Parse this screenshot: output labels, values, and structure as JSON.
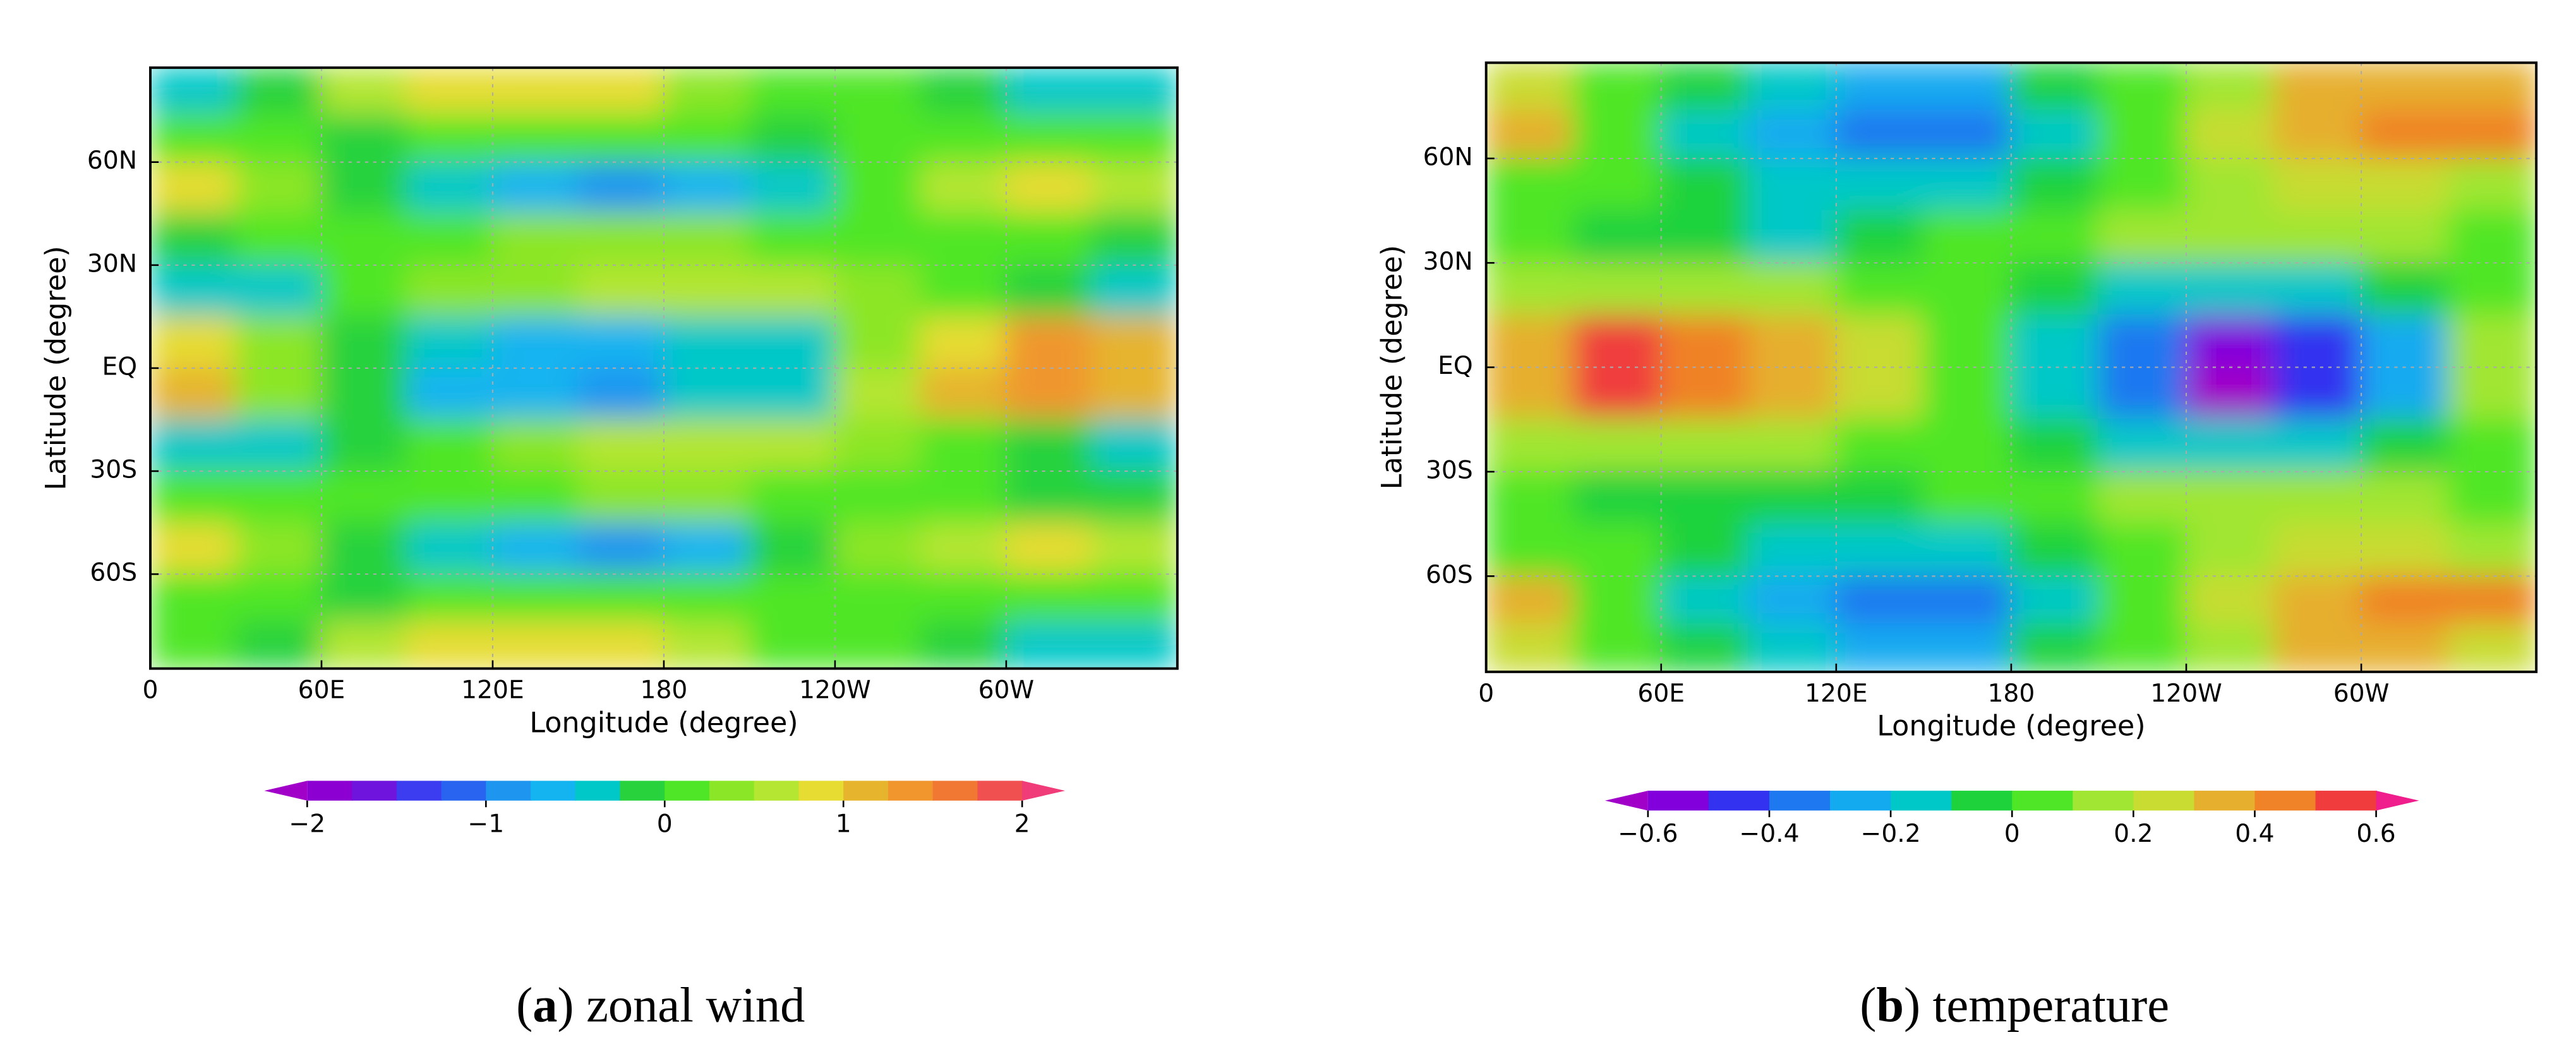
{
  "chart_data": [
    {
      "type": "contour",
      "xlabel": "Longitude (degree)",
      "ylabel": "Latitude (degree)",
      "xlim": [
        0,
        360
      ],
      "ylim": [
        -87.5,
        87.5
      ],
      "xticks": [
        0,
        {
          "value": 60,
          "label": "60E"
        },
        {
          "value": 120,
          "label": "120E"
        },
        180,
        {
          "value": 240,
          "label": "120W"
        },
        {
          "value": 300,
          "label": "60W"
        }
      ],
      "yticks": [
        {
          "value": -60,
          "label": "60S"
        },
        {
          "value": -30,
          "label": "30S"
        },
        {
          "value": 0,
          "label": "EQ"
        },
        {
          "value": 30,
          "label": "30N"
        },
        {
          "value": 60,
          "label": "60N"
        }
      ],
      "grid": true,
      "lon": [
        15,
        45,
        75,
        105,
        135,
        165,
        195,
        225,
        255,
        285,
        315,
        345
      ],
      "lat": [
        80,
        67.5,
        52.5,
        37.5,
        22.5,
        7.5,
        -7.5,
        -22.5,
        -37.5,
        -52.5,
        -67.5,
        -80
      ],
      "z": [
        [
          -0.3,
          -0.2,
          0.6,
          0.8,
          0.9,
          0.8,
          0.4,
          0.1,
          0.1,
          -0.1,
          -0.3,
          -0.3
        ],
        [
          0.2,
          0.0,
          -0.1,
          0.1,
          0.1,
          0.1,
          0.0,
          -0.1,
          0.1,
          0.2,
          0.1,
          0.1
        ],
        [
          0.9,
          0.4,
          -0.1,
          -0.5,
          -0.7,
          -0.8,
          -0.6,
          -0.3,
          0.2,
          0.6,
          0.8,
          0.7
        ],
        [
          -0.1,
          0.0,
          0.1,
          0.2,
          0.3,
          0.3,
          0.3,
          0.2,
          0.1,
          0.1,
          0.0,
          -0.1
        ],
        [
          -0.4,
          -0.3,
          0.0,
          0.3,
          0.4,
          0.5,
          0.7,
          0.6,
          0.3,
          0.1,
          -0.2,
          -0.3
        ],
        [
          0.9,
          0.3,
          -0.2,
          -0.5,
          -0.6,
          -0.7,
          -0.5,
          -0.3,
          0.4,
          0.9,
          1.3,
          1.0
        ],
        [
          1.0,
          0.3,
          -0.2,
          -0.6,
          -0.7,
          -0.8,
          -0.5,
          -0.3,
          0.5,
          1.1,
          1.3,
          1.2
        ],
        [
          -0.3,
          -0.4,
          -0.1,
          0.2,
          0.4,
          0.5,
          0.7,
          0.6,
          0.4,
          0.1,
          -0.1,
          -0.3
        ],
        [
          0.0,
          0.0,
          0.1,
          0.2,
          0.2,
          0.3,
          0.3,
          0.2,
          0.1,
          0.0,
          -0.1,
          -0.1
        ],
        [
          0.9,
          0.4,
          -0.1,
          -0.4,
          -0.6,
          -0.8,
          -0.6,
          -0.2,
          0.3,
          0.6,
          0.8,
          0.7
        ],
        [
          0.2,
          0.0,
          -0.1,
          0.0,
          0.1,
          0.1,
          0.0,
          0.0,
          0.1,
          0.2,
          0.1,
          0.1
        ],
        [
          0.0,
          -0.1,
          0.5,
          0.8,
          0.9,
          0.8,
          0.5,
          0.2,
          0.1,
          -0.1,
          -0.3,
          -0.3
        ]
      ],
      "levels": [
        -2,
        -1.75,
        -1.5,
        -1.25,
        -1,
        -0.75,
        -0.5,
        -0.25,
        0,
        0.25,
        0.5,
        0.75,
        1,
        1.25,
        1.5,
        1.75,
        2
      ],
      "colors": [
        "#a000c8",
        "#8c00d2",
        "#6e14dc",
        "#3c3cf0",
        "#2864f0",
        "#1e96f0",
        "#14b4f0",
        "#00c8c8",
        "#28d23c",
        "#50e628",
        "#8ce628",
        "#b4e632",
        "#e6dc32",
        "#e6b42d",
        "#f0962d",
        "#f07832",
        "#f05050",
        "#f03c78"
      ],
      "cbar_ticks": [
        {
          "value": -2,
          "label": "−2"
        },
        {
          "value": -1,
          "label": "−1"
        },
        0,
        1,
        2
      ],
      "caption": {
        "open": "(",
        "label": "a",
        "rest": ") zonal wind"
      }
    },
    {
      "type": "contour",
      "xlabel": "Longitude (degree)",
      "ylabel": "Latitude (degree)",
      "xlim": [
        0,
        360
      ],
      "ylim": [
        -87.5,
        87.5
      ],
      "xticks": [
        0,
        {
          "value": 60,
          "label": "60E"
        },
        {
          "value": 120,
          "label": "120E"
        },
        180,
        {
          "value": 240,
          "label": "120W"
        },
        {
          "value": 300,
          "label": "60W"
        }
      ],
      "yticks": [
        {
          "value": -60,
          "label": "60S"
        },
        {
          "value": -30,
          "label": "30S"
        },
        {
          "value": 0,
          "label": "EQ"
        },
        {
          "value": 30,
          "label": "30N"
        },
        {
          "value": 60,
          "label": "60N"
        }
      ],
      "grid": true,
      "lon": [
        15,
        45,
        75,
        105,
        135,
        165,
        195,
        225,
        255,
        285,
        315,
        345
      ],
      "lat": [
        80,
        67.5,
        52.5,
        37.5,
        22.5,
        7.5,
        -7.5,
        -22.5,
        -37.5,
        -52.5,
        -67.5,
        -80
      ],
      "z": [
        [
          0.25,
          0.05,
          -0.1,
          -0.2,
          -0.3,
          -0.25,
          -0.1,
          0.05,
          0.15,
          0.3,
          0.35,
          0.3
        ],
        [
          0.3,
          0.05,
          -0.15,
          -0.3,
          -0.4,
          -0.35,
          -0.15,
          0.05,
          0.2,
          0.35,
          0.45,
          0.4
        ],
        [
          0.05,
          0.0,
          -0.05,
          -0.15,
          -0.2,
          -0.15,
          -0.05,
          0.05,
          0.15,
          0.2,
          0.2,
          0.1
        ],
        [
          0.0,
          -0.05,
          -0.1,
          -0.15,
          -0.05,
          0.0,
          0.05,
          0.1,
          0.15,
          0.15,
          0.1,
          0.0
        ],
        [
          0.15,
          0.15,
          0.15,
          0.15,
          0.05,
          0.0,
          -0.05,
          -0.15,
          -0.15,
          -0.15,
          -0.05,
          0.05
        ],
        [
          0.35,
          0.55,
          0.45,
          0.3,
          0.2,
          0.05,
          -0.15,
          -0.4,
          -0.55,
          -0.5,
          -0.3,
          0.15
        ],
        [
          0.35,
          0.55,
          0.45,
          0.3,
          0.2,
          0.05,
          -0.15,
          -0.4,
          -0.65,
          -0.5,
          -0.3,
          0.15
        ],
        [
          0.15,
          0.15,
          0.15,
          0.15,
          0.05,
          0.0,
          -0.05,
          -0.15,
          -0.15,
          -0.15,
          -0.05,
          0.05
        ],
        [
          0.0,
          -0.05,
          -0.1,
          -0.1,
          -0.05,
          0.0,
          0.05,
          0.1,
          0.15,
          0.15,
          0.1,
          0.0
        ],
        [
          0.05,
          0.0,
          -0.05,
          -0.15,
          -0.2,
          -0.2,
          -0.05,
          0.05,
          0.15,
          0.2,
          0.2,
          0.1
        ],
        [
          0.3,
          0.05,
          -0.15,
          -0.3,
          -0.4,
          -0.4,
          -0.15,
          0.05,
          0.2,
          0.35,
          0.45,
          0.4
        ],
        [
          0.2,
          0.05,
          -0.1,
          -0.2,
          -0.3,
          -0.25,
          -0.1,
          0.05,
          0.15,
          0.3,
          0.3,
          0.25
        ]
      ],
      "levels": [
        -0.6,
        -0.5,
        -0.4,
        -0.3,
        -0.2,
        -0.1,
        0,
        0.1,
        0.2,
        0.3,
        0.4,
        0.5,
        0.6
      ],
      "colors": [
        "#a000c8",
        "#8200dc",
        "#3232f0",
        "#1e78f0",
        "#14aaf0",
        "#00c8c8",
        "#1ed23c",
        "#50e628",
        "#a0e632",
        "#c8dc32",
        "#e6af2d",
        "#f08228",
        "#f03c3c",
        "#f01e8c"
      ],
      "cbar_ticks": [
        {
          "value": -0.6,
          "label": "−0.6"
        },
        {
          "value": -0.4,
          "label": "−0.4"
        },
        {
          "value": -0.2,
          "label": "−0.2"
        },
        0,
        0.2,
        0.4,
        0.6
      ],
      "caption": {
        "open": "(",
        "label": "b",
        "rest": ") temperature"
      }
    }
  ]
}
